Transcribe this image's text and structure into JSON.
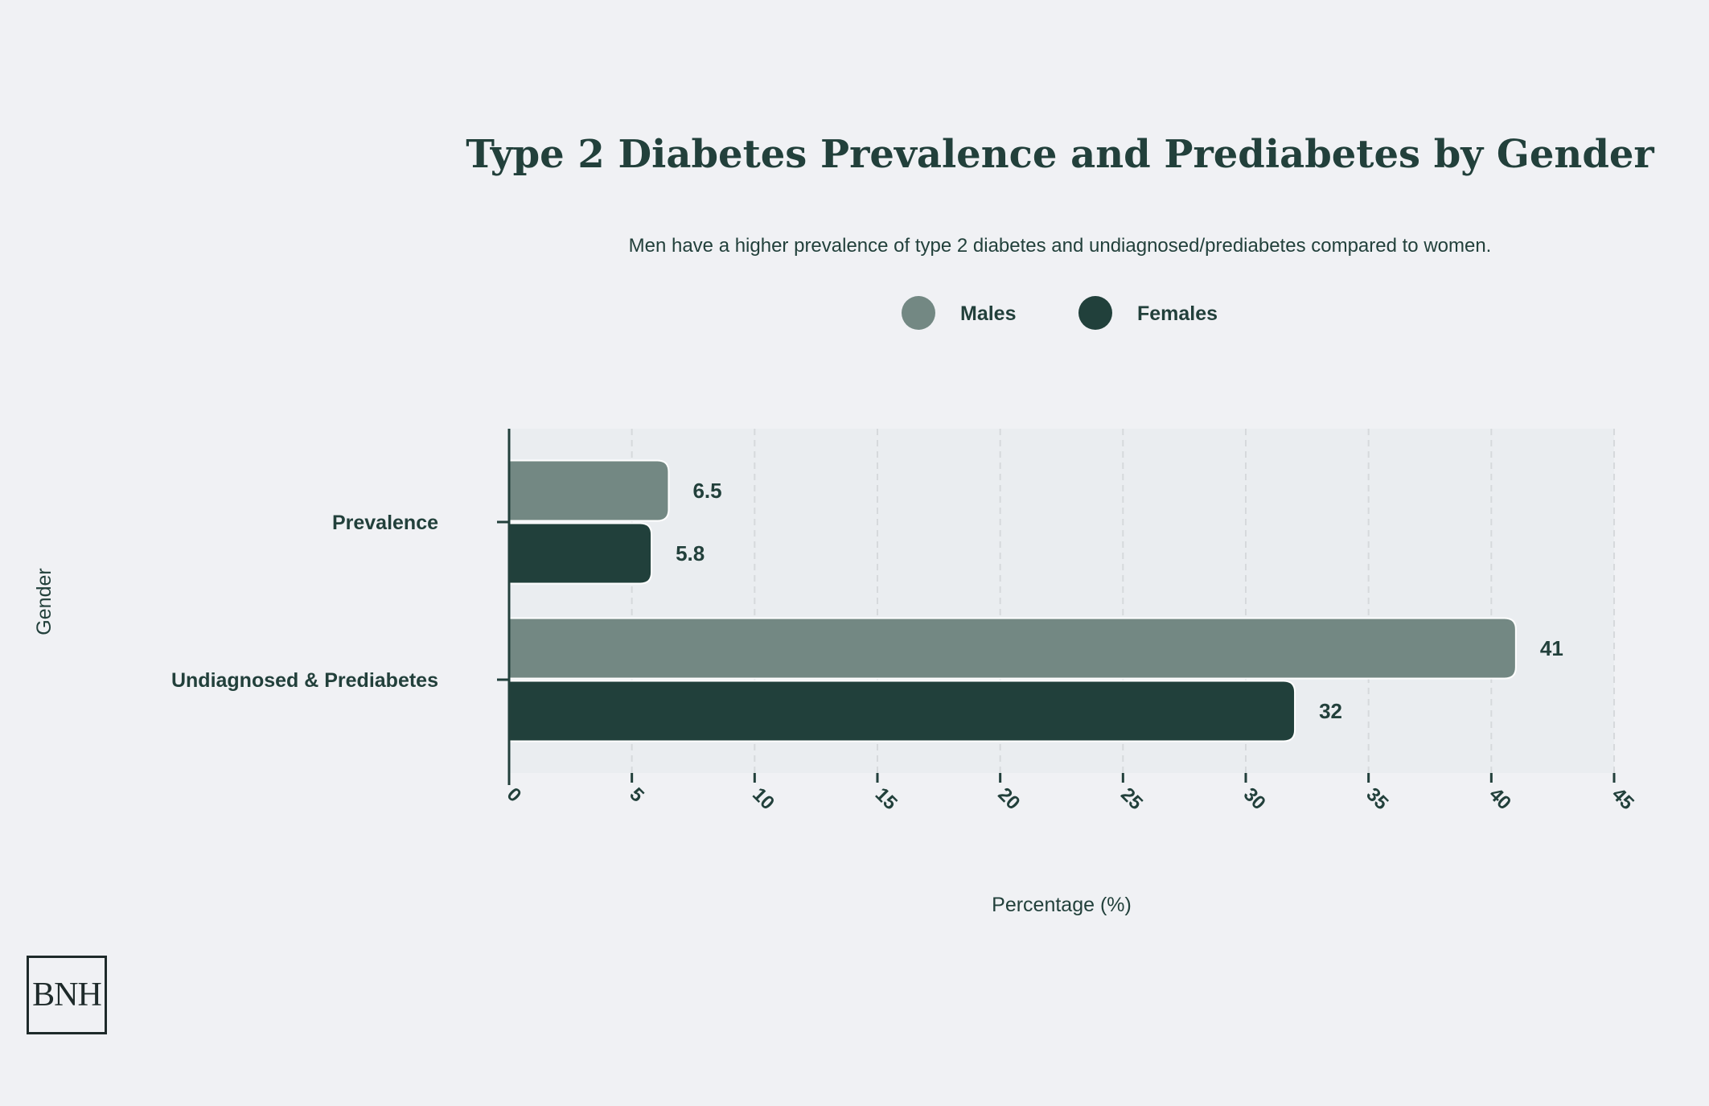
{
  "colors": {
    "background": "#f0f1f4",
    "plot_background": "#eaedf0",
    "text": "#22403b",
    "males": "#738883",
    "females": "#21403b",
    "grid": "#d6d9dc"
  },
  "logo": {
    "text": "BNH"
  },
  "chart_data": {
    "type": "bar",
    "orientation": "horizontal",
    "title": "Type 2 Diabetes Prevalence and Prediabetes by Gender",
    "subtitle": "Men have a higher prevalence of type 2 diabetes and undiagnosed/prediabetes compared to women.",
    "xlabel": "Percentage (%)",
    "ylabel": "Gender",
    "categories": [
      "Prevalence",
      "Undiagnosed & Prediabetes"
    ],
    "series": [
      {
        "name": "Males",
        "color": "#738883",
        "values": [
          6.5,
          41
        ]
      },
      {
        "name": "Females",
        "color": "#21403b",
        "values": [
          5.8,
          32
        ]
      }
    ],
    "value_labels": [
      [
        "6.5",
        "41"
      ],
      [
        "5.8",
        "32"
      ]
    ],
    "xlim": [
      0,
      45
    ],
    "xticks": [
      0,
      5,
      10,
      15,
      20,
      25,
      30,
      35,
      40,
      45
    ],
    "xtick_labels": [
      "0",
      "5",
      "10",
      "15",
      "20",
      "25",
      "30",
      "35",
      "40",
      "45"
    ],
    "grid": "vertical dashed",
    "legend_position": "top-center"
  }
}
